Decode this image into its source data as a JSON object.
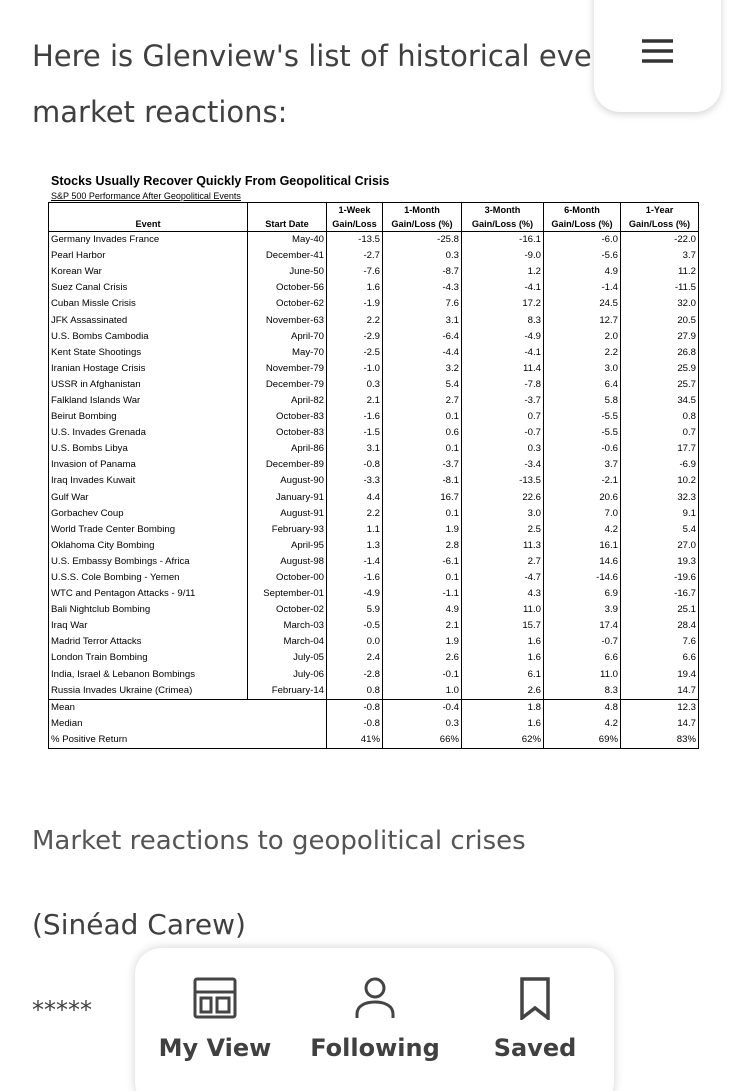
{
  "article": {
    "intro": "Here is Glenview's list of historical events and market reactions:",
    "caption": "Market reactions to geopolitical crises",
    "credit": "(Sinéad Carew)",
    "separator": "*****"
  },
  "table": {
    "title": "Stocks Usually Recover Quickly From Geopolitical Crisis",
    "subtitle": "S&P 500 Performance After Geopolitical Events",
    "header_top": [
      "1-Week",
      "1-Month",
      "3-Month",
      "6-Month",
      "1-Year"
    ],
    "header": [
      "Event",
      "Start Date",
      "Gain/Loss",
      "Gain/Loss (%)",
      "Gain/Loss (%)",
      "Gain/Loss (%)",
      "Gain/Loss (%)"
    ],
    "rows": [
      [
        "Germany Invades France",
        "May-40",
        "-13.5",
        "-25.8",
        "-16.1",
        "-6.0",
        "-22.0"
      ],
      [
        "Pearl Harbor",
        "December-41",
        "-2.7",
        "0.3",
        "-9.0",
        "-5.6",
        "3.7"
      ],
      [
        "Korean War",
        "June-50",
        "-7.6",
        "-8.7",
        "1.2",
        "4.9",
        "11.2"
      ],
      [
        "Suez Canal Crisis",
        "October-56",
        "1.6",
        "-4.3",
        "-4.1",
        "-1.4",
        "-11.5"
      ],
      [
        "Cuban Missle Crisis",
        "October-62",
        "-1.9",
        "7.6",
        "17.2",
        "24.5",
        "32.0"
      ],
      [
        "JFK Assassinated",
        "November-63",
        "2.2",
        "3.1",
        "8.3",
        "12.7",
        "20.5"
      ],
      [
        "U.S. Bombs Cambodia",
        "April-70",
        "-2.9",
        "-6.4",
        "-4.9",
        "2.0",
        "27.9"
      ],
      [
        "Kent State Shootings",
        "May-70",
        "-2.5",
        "-4.4",
        "-4.1",
        "2.2",
        "26.8"
      ],
      [
        "Iranian Hostage Crisis",
        "November-79",
        "-1.0",
        "3.2",
        "11.4",
        "3.0",
        "25.9"
      ],
      [
        "USSR in Afghanistan",
        "December-79",
        "0.3",
        "5.4",
        "-7.8",
        "6.4",
        "25.7"
      ],
      [
        "Falkland Islands War",
        "April-82",
        "2.1",
        "2.7",
        "-3.7",
        "5.8",
        "34.5"
      ],
      [
        "Beirut Bombing",
        "October-83",
        "-1.6",
        "0.1",
        "0.7",
        "-5.5",
        "0.8"
      ],
      [
        "U.S. Invades Grenada",
        "October-83",
        "-1.5",
        "0.6",
        "-0.7",
        "-5.5",
        "0.7"
      ],
      [
        "U.S. Bombs Libya",
        "April-86",
        "3.1",
        "0.1",
        "0.3",
        "-0.6",
        "17.7"
      ],
      [
        "Invasion of Panama",
        "December-89",
        "-0.8",
        "-3.7",
        "-3.4",
        "3.7",
        "-6.9"
      ],
      [
        "Iraq Invades Kuwait",
        "August-90",
        "-3.3",
        "-8.1",
        "-13.5",
        "-2.1",
        "10.2"
      ],
      [
        "Gulf War",
        "January-91",
        "4.4",
        "16.7",
        "22.6",
        "20.6",
        "32.3"
      ],
      [
        "Gorbachev Coup",
        "August-91",
        "2.2",
        "0.1",
        "3.0",
        "7.0",
        "9.1"
      ],
      [
        "World Trade Center Bombing",
        "February-93",
        "1.1",
        "1.9",
        "2.5",
        "4.2",
        "5.4"
      ],
      [
        "Oklahoma City Bombing",
        "April-95",
        "1.3",
        "2.8",
        "11.3",
        "16.1",
        "27.0"
      ],
      [
        "U.S. Embassy Bombings - Africa",
        "August-98",
        "-1.4",
        "-6.1",
        "2.7",
        "14.6",
        "19.3"
      ],
      [
        "U.S.S. Cole Bombing - Yemen",
        "October-00",
        "-1.6",
        "0.1",
        "-4.7",
        "-14.6",
        "-19.6"
      ],
      [
        "WTC and Pentagon Attacks - 9/11",
        "September-01",
        "-4.9",
        "-1.1",
        "4.3",
        "6.9",
        "-16.7"
      ],
      [
        "Bali Nightclub Bombing",
        "October-02",
        "5.9",
        "4.9",
        "11.0",
        "3.9",
        "25.1"
      ],
      [
        "Iraq War",
        "March-03",
        "-0.5",
        "2.1",
        "15.7",
        "17.4",
        "28.4"
      ],
      [
        "Madrid Terror Attacks",
        "March-04",
        "0.0",
        "1.9",
        "1.6",
        "-0.7",
        "7.6"
      ],
      [
        "London Train Bombing",
        "July-05",
        "2.4",
        "2.6",
        "1.6",
        "6.6",
        "6.6"
      ],
      [
        "India, Israel & Lebanon Bombings",
        "July-06",
        "-2.8",
        "-0.1",
        "6.1",
        "11.0",
        "19.4"
      ],
      [
        "Russia Invades Ukraine (Crimea)",
        "February-14",
        "0.8",
        "1.0",
        "2.6",
        "8.3",
        "14.7"
      ]
    ],
    "summary": [
      [
        "Mean",
        "-0.8",
        "-0.4",
        "1.8",
        "4.8",
        "12.3"
      ],
      [
        "Median",
        "-0.8",
        "0.3",
        "1.6",
        "4.2",
        "14.7"
      ],
      [
        "% Positive Return",
        "41%",
        "66%",
        "62%",
        "69%",
        "83%"
      ]
    ]
  },
  "nav": {
    "items": [
      "My View",
      "Following",
      "Saved"
    ]
  }
}
